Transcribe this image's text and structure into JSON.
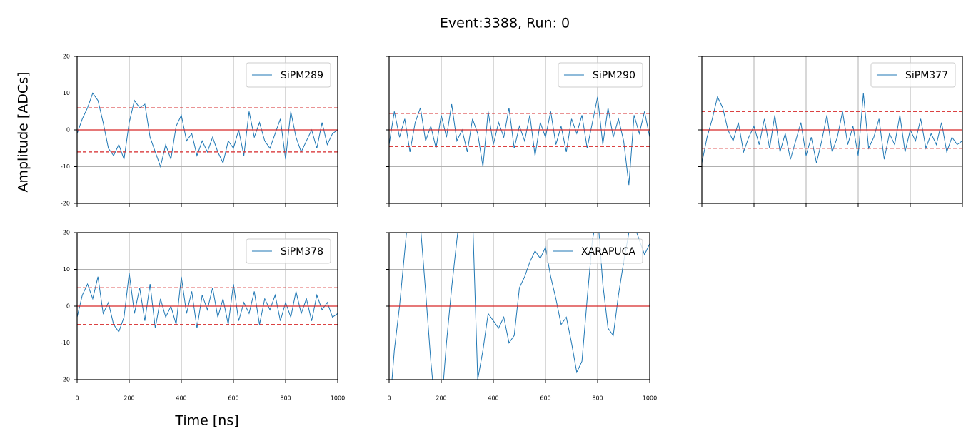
{
  "title": "Event:3388, Run: 0",
  "ylabel": "Amplitude [ADCs]",
  "xlabel": "Time [ns]",
  "chart_data": [
    {
      "type": "line",
      "xlim": [
        0,
        1000
      ],
      "ylim": [
        -20,
        20
      ],
      "xticks": [
        0,
        200,
        400,
        600,
        800,
        1000
      ],
      "yticks": [
        -20,
        -10,
        0,
        10,
        20
      ],
      "grid": true,
      "legend": "upper right",
      "show_xticklabels": false,
      "show_yticklabels": true,
      "x": [
        0,
        20,
        40,
        60,
        80,
        100,
        120,
        140,
        160,
        180,
        200,
        220,
        240,
        260,
        280,
        300,
        320,
        340,
        360,
        380,
        400,
        420,
        440,
        460,
        480,
        500,
        520,
        540,
        560,
        580,
        600,
        620,
        640,
        660,
        680,
        700,
        720,
        740,
        760,
        780,
        800,
        820,
        840,
        860,
        880,
        900,
        920,
        940,
        960,
        980,
        1000
      ],
      "series": [
        {
          "name": "SiPM289",
          "color": "#1f77b4",
          "values": [
            -1,
            3,
            6,
            10,
            8,
            2,
            -5,
            -7,
            -4,
            -8,
            2,
            8,
            6,
            7,
            -2,
            -6,
            -10,
            -4,
            -8,
            1,
            4,
            -3,
            -1,
            -7,
            -3,
            -6,
            -2,
            -6,
            -9,
            -3,
            -5,
            0,
            -7,
            5,
            -2,
            2,
            -3,
            -5,
            -1,
            3,
            -8,
            5,
            -2,
            -6,
            -3,
            0,
            -5,
            2,
            -4,
            -1,
            0
          ]
        }
      ],
      "hlines": [
        {
          "value": 0,
          "style": "solid",
          "color": "#d62728"
        },
        {
          "value": 6,
          "style": "dashed",
          "color": "#d62728"
        },
        {
          "value": -6,
          "style": "dashed",
          "color": "#d62728"
        }
      ]
    },
    {
      "type": "line",
      "xlim": [
        0,
        1000
      ],
      "ylim": [
        -20,
        20
      ],
      "xticks": [
        0,
        200,
        400,
        600,
        800,
        1000
      ],
      "yticks": [
        -20,
        -10,
        0,
        10,
        20
      ],
      "grid": true,
      "legend": "upper right",
      "show_xticklabels": false,
      "show_yticklabels": false,
      "x": [
        0,
        20,
        40,
        60,
        80,
        100,
        120,
        140,
        160,
        180,
        200,
        220,
        240,
        260,
        280,
        300,
        320,
        340,
        360,
        380,
        400,
        420,
        440,
        460,
        480,
        500,
        520,
        540,
        560,
        580,
        600,
        620,
        640,
        660,
        680,
        700,
        720,
        740,
        760,
        780,
        800,
        820,
        840,
        860,
        880,
        900,
        920,
        940,
        960,
        980,
        1000
      ],
      "series": [
        {
          "name": "SiPM290",
          "color": "#1f77b4",
          "values": [
            -4,
            5,
            -2,
            3,
            -6,
            2,
            6,
            -3,
            1,
            -5,
            4,
            -2,
            7,
            -3,
            0,
            -6,
            3,
            -1,
            -10,
            5,
            -4,
            2,
            -2,
            6,
            -5,
            1,
            -3,
            4,
            -7,
            2,
            -2,
            5,
            -4,
            1,
            -6,
            3,
            -1,
            4,
            -5,
            2,
            9,
            -4,
            6,
            -2,
            3,
            -3,
            -15,
            4,
            -1,
            5,
            -2
          ]
        }
      ],
      "hlines": [
        {
          "value": 0,
          "style": "solid",
          "color": "#d62728"
        },
        {
          "value": 4.5,
          "style": "dashed",
          "color": "#d62728"
        },
        {
          "value": -4.5,
          "style": "dashed",
          "color": "#d62728"
        }
      ]
    },
    {
      "type": "line",
      "xlim": [
        0,
        1000
      ],
      "ylim": [
        -20,
        20
      ],
      "xticks": [
        0,
        200,
        400,
        600,
        800,
        1000
      ],
      "yticks": [
        -20,
        -10,
        0,
        10,
        20
      ],
      "grid": true,
      "legend": "upper right",
      "show_xticklabels": false,
      "show_yticklabels": false,
      "x": [
        0,
        20,
        40,
        60,
        80,
        100,
        120,
        140,
        160,
        180,
        200,
        220,
        240,
        260,
        280,
        300,
        320,
        340,
        360,
        380,
        400,
        420,
        440,
        460,
        480,
        500,
        520,
        540,
        560,
        580,
        600,
        620,
        640,
        660,
        680,
        700,
        720,
        740,
        760,
        780,
        800,
        820,
        840,
        860,
        880,
        900,
        920,
        940,
        960,
        980,
        1000
      ],
      "series": [
        {
          "name": "SiPM377",
          "color": "#1f77b4",
          "values": [
            -9,
            -2,
            3,
            9,
            6,
            0,
            -3,
            2,
            -6,
            -2,
            1,
            -4,
            3,
            -5,
            4,
            -6,
            -1,
            -8,
            -3,
            2,
            -7,
            -2,
            -9,
            -3,
            4,
            -6,
            -2,
            5,
            -4,
            1,
            -7,
            10,
            -5,
            -2,
            3,
            -8,
            -1,
            -4,
            4,
            -6,
            0,
            -3,
            3,
            -5,
            -1,
            -4,
            2,
            -6,
            -2,
            -4,
            -3
          ]
        }
      ],
      "hlines": [
        {
          "value": 0,
          "style": "solid",
          "color": "#d62728"
        },
        {
          "value": 5,
          "style": "dashed",
          "color": "#d62728"
        },
        {
          "value": -5,
          "style": "dashed",
          "color": "#d62728"
        }
      ]
    },
    {
      "type": "line",
      "xlim": [
        0,
        1000
      ],
      "ylim": [
        -20,
        20
      ],
      "xticks": [
        0,
        200,
        400,
        600,
        800,
        1000
      ],
      "yticks": [
        -20,
        -10,
        0,
        10,
        20
      ],
      "grid": true,
      "legend": "upper right",
      "show_xticklabels": true,
      "show_yticklabels": true,
      "x": [
        0,
        20,
        40,
        60,
        80,
        100,
        120,
        140,
        160,
        180,
        200,
        220,
        240,
        260,
        280,
        300,
        320,
        340,
        360,
        380,
        400,
        420,
        440,
        460,
        480,
        500,
        520,
        540,
        560,
        580,
        600,
        620,
        640,
        660,
        680,
        700,
        720,
        740,
        760,
        780,
        800,
        820,
        840,
        860,
        880,
        900,
        920,
        940,
        960,
        980,
        1000
      ],
      "series": [
        {
          "name": "SiPM378",
          "color": "#1f77b4",
          "values": [
            -3,
            3,
            6,
            2,
            8,
            -2,
            1,
            -5,
            -7,
            -3,
            9,
            -2,
            5,
            -4,
            6,
            -6,
            2,
            -3,
            0,
            -5,
            8,
            -2,
            4,
            -6,
            3,
            -1,
            5,
            -3,
            2,
            -5,
            6,
            -4,
            1,
            -2,
            4,
            -5,
            2,
            -1,
            3,
            -4,
            1,
            -3,
            4,
            -2,
            2,
            -4,
            3,
            -1,
            1,
            -3,
            -2
          ]
        }
      ],
      "hlines": [
        {
          "value": 0,
          "style": "solid",
          "color": "#d62728"
        },
        {
          "value": 5,
          "style": "dashed",
          "color": "#d62728"
        },
        {
          "value": -5,
          "style": "dashed",
          "color": "#d62728"
        }
      ]
    },
    {
      "type": "line",
      "xlim": [
        0,
        1000
      ],
      "ylim": [
        -20,
        20
      ],
      "xticks": [
        0,
        200,
        400,
        600,
        800,
        1000
      ],
      "yticks": [
        -20,
        -10,
        0,
        10,
        20
      ],
      "grid": true,
      "legend": "upper right",
      "show_xticklabels": true,
      "show_yticklabels": false,
      "x": [
        0,
        20,
        40,
        60,
        80,
        100,
        120,
        140,
        160,
        180,
        200,
        220,
        240,
        260,
        280,
        300,
        320,
        340,
        360,
        380,
        400,
        420,
        440,
        460,
        480,
        500,
        520,
        540,
        560,
        580,
        600,
        620,
        640,
        660,
        680,
        700,
        720,
        740,
        760,
        780,
        800,
        820,
        840,
        860,
        880,
        900,
        920,
        940,
        960,
        980,
        1000
      ],
      "series": [
        {
          "name": "XARAPUCA",
          "color": "#1f77b4",
          "values": [
            -30,
            -12,
            0,
            15,
            30,
            35,
            22,
            4,
            -15,
            -30,
            -28,
            -10,
            5,
            18,
            30,
            35,
            25,
            -20,
            -12,
            -2,
            -4,
            -6,
            -3,
            -10,
            -8,
            5,
            8,
            12,
            15,
            13,
            16,
            8,
            2,
            -5,
            -3,
            -10,
            -18,
            -15,
            2,
            18,
            25,
            6,
            -6,
            -8,
            3,
            12,
            20,
            22,
            18,
            14,
            17
          ]
        }
      ],
      "hlines": [
        {
          "value": 0,
          "style": "solid",
          "color": "#d62728"
        }
      ]
    }
  ]
}
